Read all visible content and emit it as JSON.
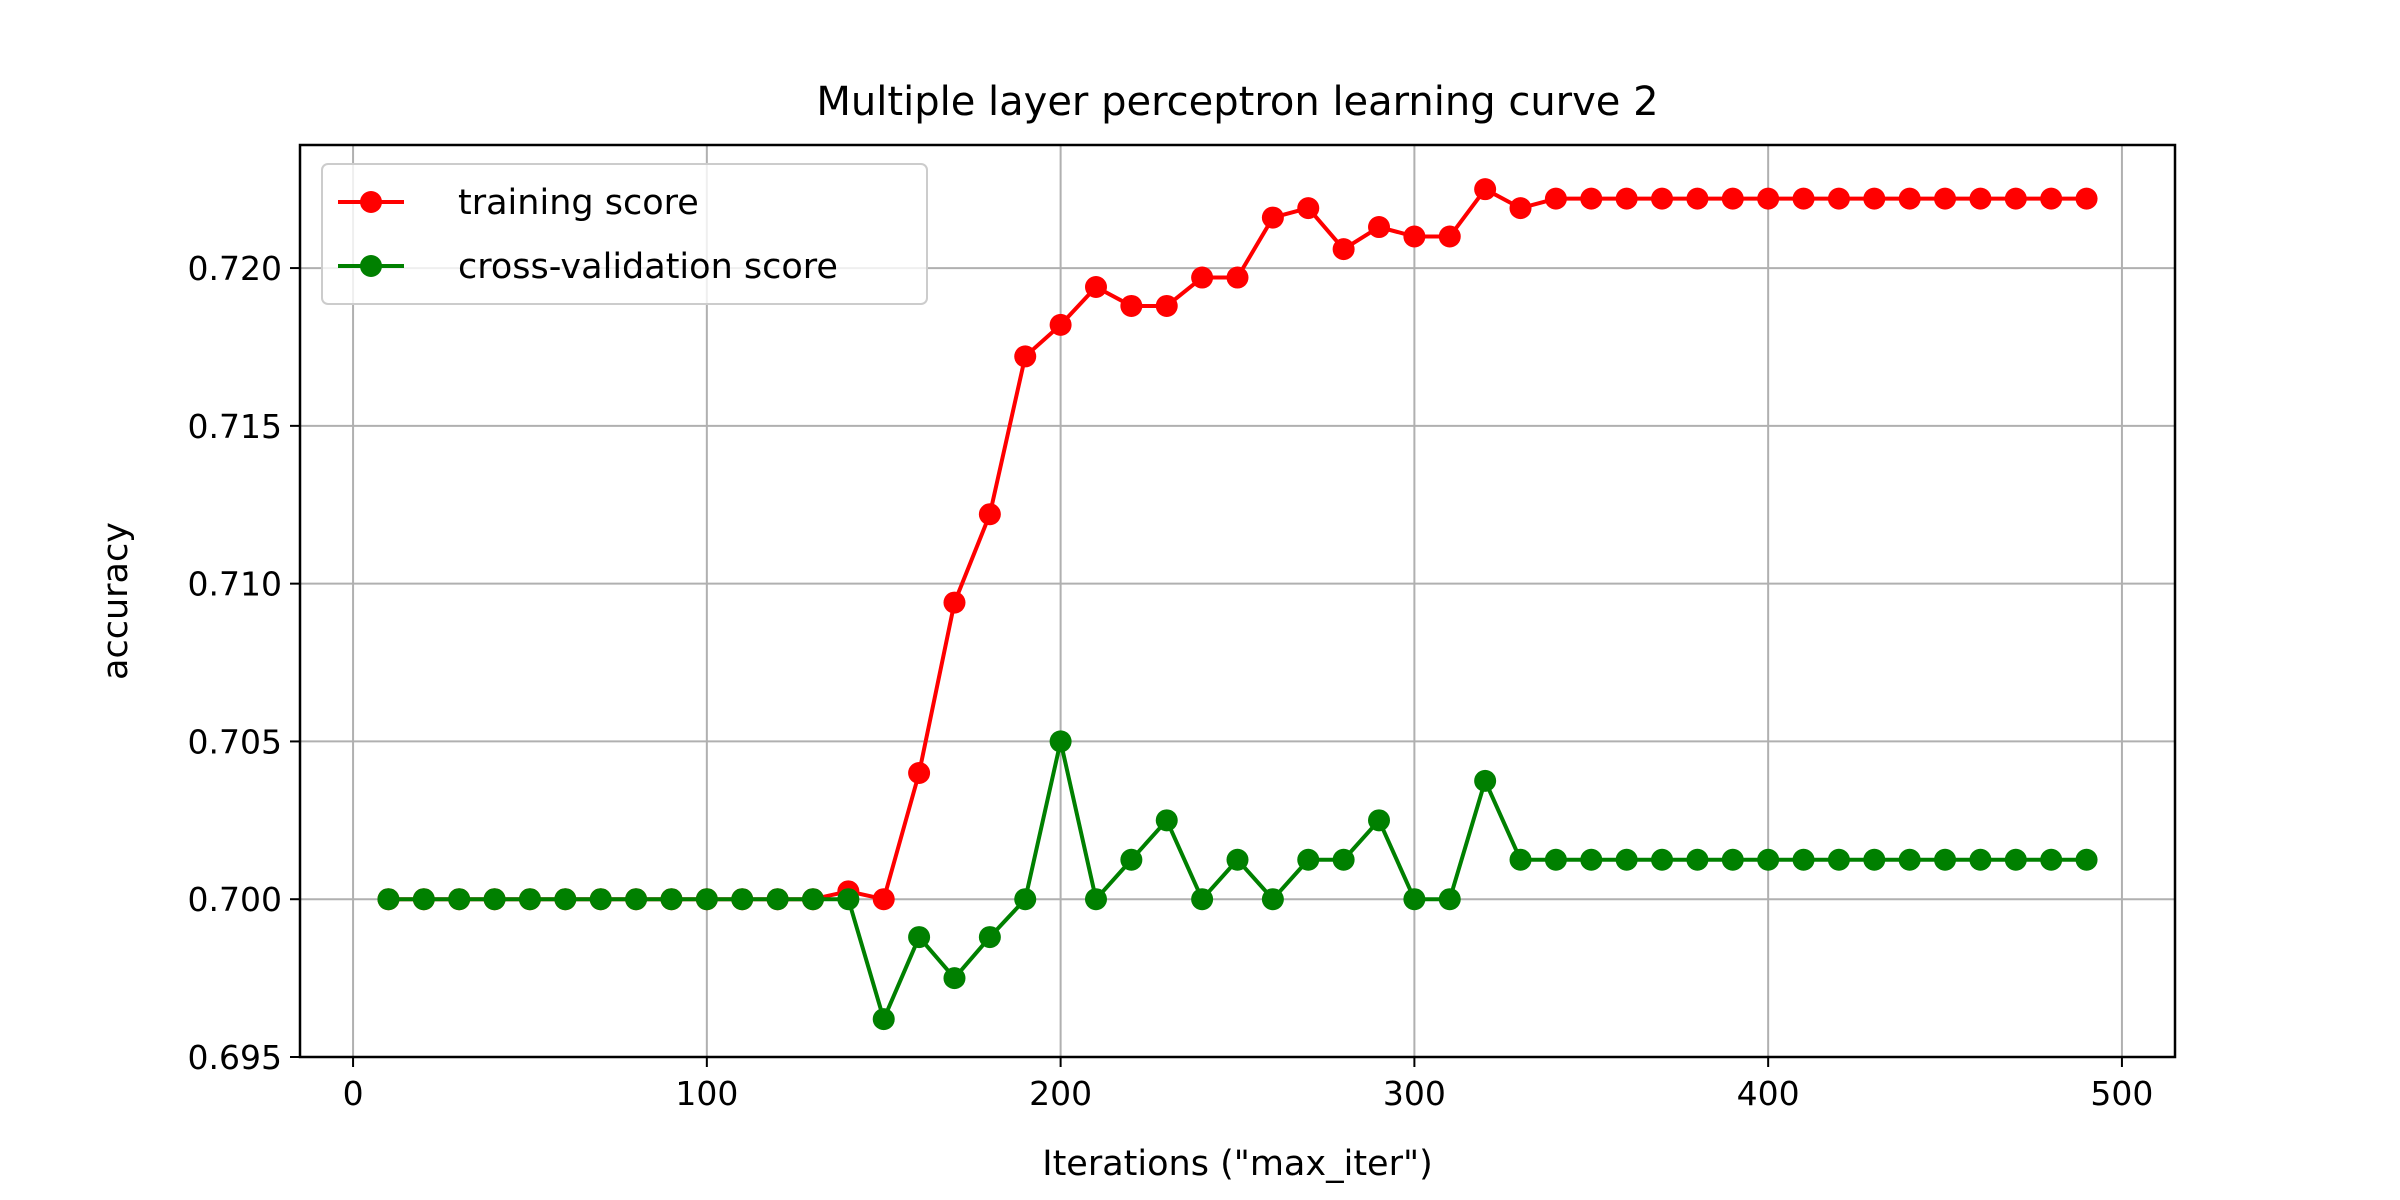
{
  "chart_data": {
    "type": "line",
    "title": "Multiple layer perceptron learning curve 2",
    "xlabel": "Iterations (\"max_iter\")",
    "ylabel": "accuracy",
    "xlim": [
      -15,
      515
    ],
    "ylim": [
      0.695,
      0.7239
    ],
    "x_ticks": [
      0,
      100,
      200,
      300,
      400,
      500
    ],
    "x_tick_labels": [
      "0",
      "100",
      "200",
      "300",
      "400",
      "500"
    ],
    "y_ticks": [
      0.695,
      0.7,
      0.705,
      0.71,
      0.715,
      0.72
    ],
    "y_tick_labels": [
      "0.695",
      "0.700",
      "0.705",
      "0.710",
      "0.715",
      "0.720"
    ],
    "grid": true,
    "legend_position": "upper-left",
    "x": [
      10,
      20,
      30,
      40,
      50,
      60,
      70,
      80,
      90,
      100,
      110,
      120,
      130,
      140,
      150,
      160,
      170,
      180,
      190,
      200,
      210,
      220,
      230,
      240,
      250,
      260,
      270,
      280,
      290,
      300,
      310,
      320,
      330,
      340,
      350,
      360,
      370,
      380,
      390,
      400,
      410,
      420,
      430,
      440,
      450,
      460,
      470,
      480,
      490
    ],
    "series": [
      {
        "name": "training score",
        "color": "#ff0000",
        "values": [
          0.7,
          0.7,
          0.7,
          0.7,
          0.7,
          0.7,
          0.7,
          0.7,
          0.7,
          0.7,
          0.7,
          0.7,
          0.7,
          0.70025,
          0.7,
          0.704,
          0.7094,
          0.7122,
          0.7172,
          0.7182,
          0.7194,
          0.7188,
          0.7188,
          0.7197,
          0.7197,
          0.7216,
          0.7219,
          0.7206,
          0.7213,
          0.721,
          0.721,
          0.7225,
          0.7219,
          0.7222,
          0.7222,
          0.7222,
          0.7222,
          0.7222,
          0.7222,
          0.7222,
          0.7222,
          0.7222,
          0.7222,
          0.7222,
          0.7222,
          0.7222,
          0.7222,
          0.7222,
          0.7222
        ]
      },
      {
        "name": "cross-validation score",
        "color": "#008000",
        "values": [
          0.7,
          0.7,
          0.7,
          0.7,
          0.7,
          0.7,
          0.7,
          0.7,
          0.7,
          0.7,
          0.7,
          0.7,
          0.7,
          0.7,
          0.6962,
          0.6988,
          0.6975,
          0.6988,
          0.7,
          0.705,
          0.7,
          0.70125,
          0.7025,
          0.7,
          0.70125,
          0.7,
          0.70125,
          0.70125,
          0.7025,
          0.7,
          0.7,
          0.70375,
          0.70125,
          0.70125,
          0.70125,
          0.70125,
          0.70125,
          0.70125,
          0.70125,
          0.70125,
          0.70125,
          0.70125,
          0.70125,
          0.70125,
          0.70125,
          0.70125,
          0.70125,
          0.70125,
          0.70125
        ]
      }
    ]
  }
}
